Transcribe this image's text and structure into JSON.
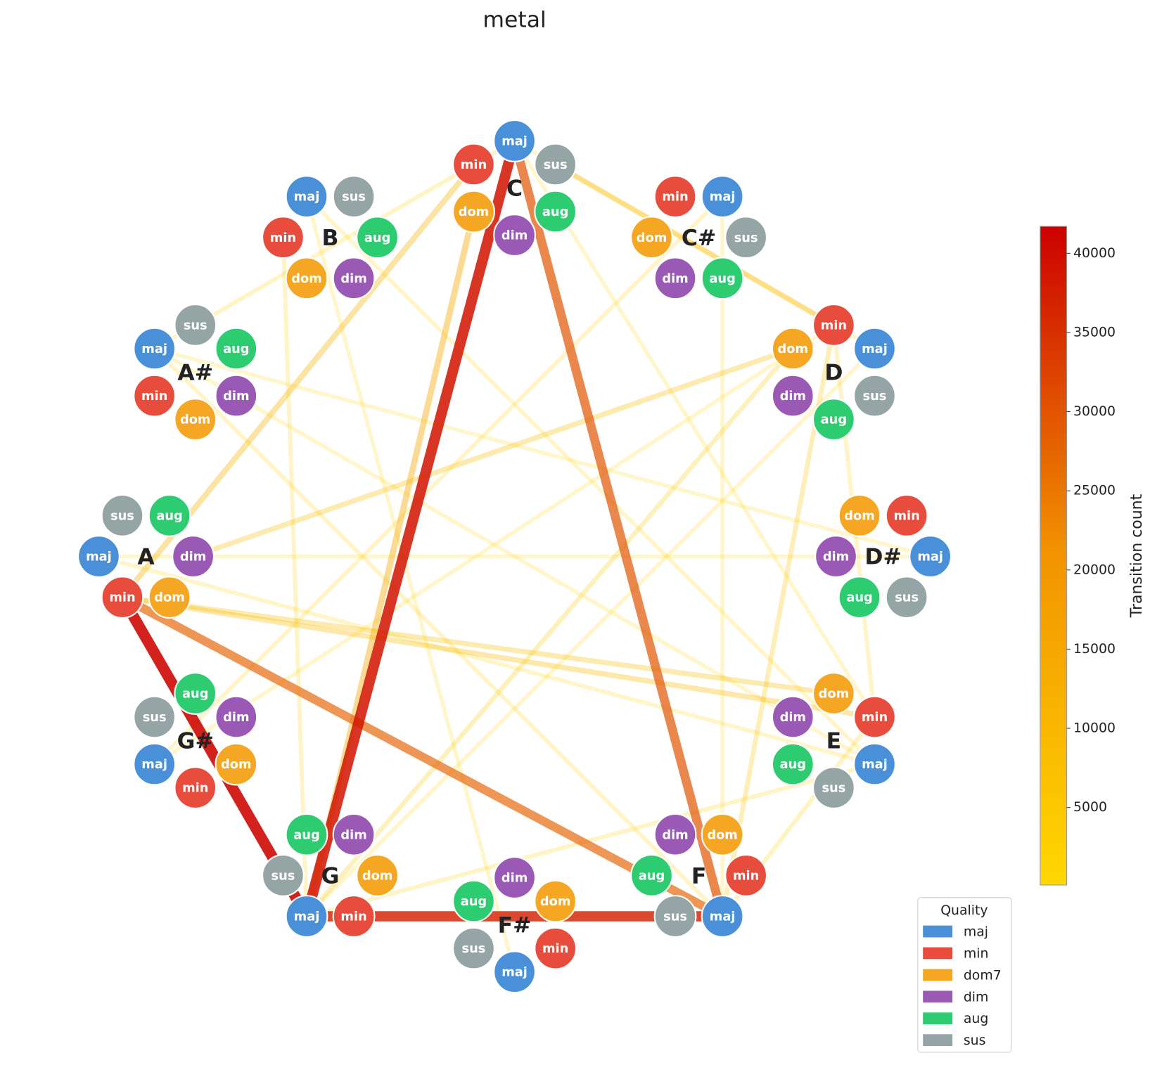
{
  "chart_data": {
    "type": "network",
    "title": "metal",
    "roots": [
      "C",
      "C#",
      "D",
      "D#",
      "E",
      "F",
      "F#",
      "G",
      "G#",
      "A",
      "A#",
      "B"
    ],
    "node_labels": [
      "maj",
      "min",
      "dom",
      "dim",
      "aug",
      "sus"
    ],
    "edges": [
      {
        "from": [
          "C",
          "maj"
        ],
        "to": [
          "E",
          "min"
        ],
        "value": 1500
      },
      {
        "from": [
          "D",
          "maj"
        ],
        "to": [
          "G",
          "maj"
        ],
        "value": 1500
      },
      {
        "from": [
          "C#",
          "maj"
        ],
        "to": [
          "F",
          "maj"
        ],
        "value": 1500
      },
      {
        "from": [
          "A#",
          "maj"
        ],
        "to": [
          "E",
          "maj"
        ],
        "value": 1500
      },
      {
        "from": [
          "B",
          "maj"
        ],
        "to": [
          "F#",
          "maj"
        ],
        "value": 1500
      },
      {
        "from": [
          "D#",
          "maj"
        ],
        "to": [
          "A",
          "maj"
        ],
        "value": 1500
      },
      {
        "from": [
          "G#",
          "maj"
        ],
        "to": [
          "D",
          "min"
        ],
        "value": 1500
      },
      {
        "from": [
          "B",
          "maj"
        ],
        "to": [
          "E",
          "maj"
        ],
        "value": 1500
      },
      {
        "from": [
          "A#",
          "maj"
        ],
        "to": [
          "D#",
          "maj"
        ],
        "value": 1500
      },
      {
        "from": [
          "E",
          "maj"
        ],
        "to": [
          "A",
          "maj"
        ],
        "value": 2000
      },
      {
        "from": [
          "G#",
          "maj"
        ],
        "to": [
          "C#",
          "maj"
        ],
        "value": 2000
      },
      {
        "from": [
          "C",
          "maj"
        ],
        "to": [
          "D",
          "maj"
        ],
        "value": 2000
      },
      {
        "from": [
          "D",
          "min"
        ],
        "to": [
          "E",
          "min"
        ],
        "value": 2500
      },
      {
        "from": [
          "A#",
          "maj"
        ],
        "to": [
          "F",
          "maj"
        ],
        "value": 2500
      },
      {
        "from": [
          "B",
          "min"
        ],
        "to": [
          "G",
          "maj"
        ],
        "value": 2500
      },
      {
        "from": [
          "C",
          "maj"
        ],
        "to": [
          "A#",
          "maj"
        ],
        "value": 3000
      },
      {
        "from": [
          "E",
          "maj"
        ],
        "to": [
          "G",
          "maj"
        ],
        "value": 3000
      },
      {
        "from": [
          "E",
          "min"
        ],
        "to": [
          "F",
          "maj"
        ],
        "value": 3500
      },
      {
        "from": [
          "D",
          "dom"
        ],
        "to": [
          "G",
          "maj"
        ],
        "value": 5000
      },
      {
        "from": [
          "D",
          "min"
        ],
        "to": [
          "F",
          "maj"
        ],
        "value": 6000
      },
      {
        "from": [
          "A",
          "dim"
        ],
        "to": [
          "D",
          "dom"
        ],
        "value": 8000
      },
      {
        "from": [
          "A",
          "min"
        ],
        "to": [
          "E",
          "dom"
        ],
        "value": 8000
      },
      {
        "from": [
          "A",
          "min"
        ],
        "to": [
          "E",
          "min"
        ],
        "value": 9000
      },
      {
        "from": [
          "C",
          "sus"
        ],
        "to": [
          "D",
          "min"
        ],
        "value": 10000
      },
      {
        "from": [
          "C",
          "min"
        ],
        "to": [
          "A",
          "min"
        ],
        "value": 11000
      },
      {
        "from": [
          "C",
          "dom"
        ],
        "to": [
          "G",
          "maj"
        ],
        "value": 14000
      },
      {
        "from": [
          "A",
          "min"
        ],
        "to": [
          "F",
          "maj"
        ],
        "value": 28000
      },
      {
        "from": [
          "C",
          "maj"
        ],
        "to": [
          "F",
          "maj"
        ],
        "value": 30000
      },
      {
        "from": [
          "G",
          "maj"
        ],
        "to": [
          "F",
          "maj"
        ],
        "value": 37000
      },
      {
        "from": [
          "C",
          "maj"
        ],
        "to": [
          "G",
          "maj"
        ],
        "value": 39000
      },
      {
        "from": [
          "A",
          "min"
        ],
        "to": [
          "G",
          "maj"
        ],
        "value": 41000
      }
    ],
    "colormap": [
      "#ffd700",
      "#f29400",
      "#cc0000"
    ],
    "colorbar_label": "Transition count",
    "clim": [
      100,
      41700
    ],
    "cticks": [
      5000,
      10000,
      15000,
      20000,
      25000,
      30000,
      35000,
      40000
    ],
    "legend_title": "Quality",
    "legend": [
      {
        "name": "maj",
        "color": "#4a90d9"
      },
      {
        "name": "min",
        "color": "#e74c3c"
      },
      {
        "name": "dom7",
        "color": "#f5a623"
      },
      {
        "name": "dim",
        "color": "#9b59b6"
      },
      {
        "name": "aug",
        "color": "#2ecc71"
      },
      {
        "name": "sus",
        "color": "#95a5a6"
      }
    ]
  }
}
